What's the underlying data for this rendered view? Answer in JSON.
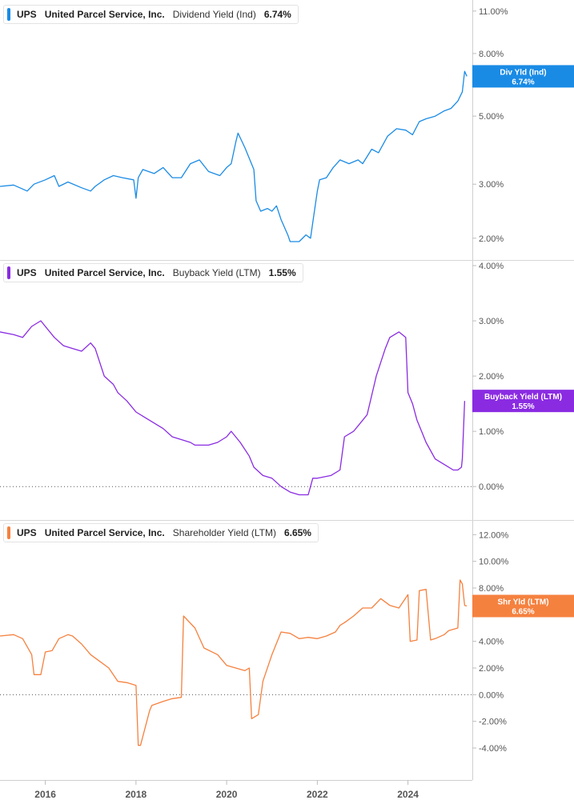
{
  "chart_data": [
    {
      "type": "line",
      "ticker": "UPS",
      "company": "United Parcel Service, Inc.",
      "metric": "Dividend Yield (Ind)",
      "current_value": "6.74%",
      "tag_label": "Div Yld (Ind)",
      "color": "#1a8be5",
      "y_scale": "log",
      "ylim": [
        1.75,
        11.6
      ],
      "y_ticks": [
        {
          "v": 11,
          "label": "11.00%"
        },
        {
          "v": 8,
          "label": "8.00%"
        },
        {
          "v": 5,
          "label": "5.00%"
        },
        {
          "v": 3,
          "label": "3.00%"
        },
        {
          "v": 2,
          "label": "2.00%"
        }
      ],
      "zero_line": false,
      "series": [
        {
          "x": [
            2015.0,
            2015.3,
            2015.6,
            2015.75,
            2016.0,
            2016.2,
            2016.3,
            2016.5,
            2016.8,
            2017.0,
            2017.1,
            2017.3,
            2017.5,
            2017.7,
            2017.95,
            2018.0,
            2018.05,
            2018.15,
            2018.4,
            2018.6,
            2018.8,
            2019.0,
            2019.2,
            2019.4,
            2019.6,
            2019.85,
            2020.0,
            2020.1,
            2020.2,
            2020.25,
            2020.4,
            2020.6,
            2020.65,
            2020.75,
            2020.9,
            2021.0,
            2021.1,
            2021.2,
            2021.35,
            2021.4,
            2021.6,
            2021.75,
            2021.85,
            2021.9,
            2022.0,
            2022.05,
            2022.2,
            2022.35,
            2022.5,
            2022.7,
            2022.9,
            2023.0,
            2023.2,
            2023.35,
            2023.55,
            2023.75,
            2023.95,
            2024.1,
            2024.25,
            2024.4,
            2024.6,
            2024.7,
            2024.8,
            2024.95,
            2025.1,
            2025.2,
            2025.25,
            2025.3
          ],
          "values": [
            2.95,
            2.98,
            2.85,
            3.0,
            3.1,
            3.2,
            2.95,
            3.05,
            2.92,
            2.85,
            2.95,
            3.1,
            3.2,
            3.15,
            3.1,
            2.7,
            3.15,
            3.35,
            3.25,
            3.4,
            3.15,
            3.15,
            3.5,
            3.6,
            3.3,
            3.2,
            3.4,
            3.5,
            4.1,
            4.4,
            3.95,
            3.35,
            2.65,
            2.45,
            2.5,
            2.45,
            2.55,
            2.3,
            2.05,
            1.95,
            1.95,
            2.05,
            2.0,
            2.25,
            2.85,
            3.1,
            3.15,
            3.4,
            3.6,
            3.5,
            3.6,
            3.5,
            3.9,
            3.8,
            4.3,
            4.55,
            4.5,
            4.35,
            4.8,
            4.9,
            5.0,
            5.1,
            5.2,
            5.3,
            5.6,
            6.0,
            7.0,
            6.74
          ]
        }
      ]
    },
    {
      "type": "line",
      "ticker": "UPS",
      "company": "United Parcel Service, Inc.",
      "metric": "Buyback Yield (LTM)",
      "current_value": "1.55%",
      "tag_label": "Buyback Yield (LTM)",
      "color": "#8a2be2",
      "y_scale": "linear",
      "ylim": [
        -0.2,
        4.0
      ],
      "y_ticks": [
        {
          "v": 4,
          "label": "4.00%"
        },
        {
          "v": 3,
          "label": "3.00%"
        },
        {
          "v": 2,
          "label": "2.00%"
        },
        {
          "v": 1,
          "label": "1.00%"
        },
        {
          "v": 0,
          "label": "0.00%"
        }
      ],
      "zero_line": true,
      "series": [
        {
          "x": [
            2015.0,
            2015.3,
            2015.5,
            2015.7,
            2015.9,
            2016.0,
            2016.2,
            2016.4,
            2016.6,
            2016.8,
            2017.0,
            2017.1,
            2017.3,
            2017.5,
            2017.6,
            2017.8,
            2018.0,
            2018.2,
            2018.4,
            2018.6,
            2018.8,
            2019.0,
            2019.2,
            2019.3,
            2019.6,
            2019.8,
            2020.0,
            2020.1,
            2020.3,
            2020.5,
            2020.6,
            2020.8,
            2021.0,
            2021.2,
            2021.4,
            2021.6,
            2021.8,
            2021.9,
            2022.0,
            2022.3,
            2022.5,
            2022.6,
            2022.8,
            2023.0,
            2023.1,
            2023.3,
            2023.5,
            2023.6,
            2023.8,
            2023.95,
            2024.0,
            2024.1,
            2024.2,
            2024.3,
            2024.4,
            2024.6,
            2024.8,
            2025.0,
            2025.1,
            2025.18,
            2025.2,
            2025.25
          ],
          "values": [
            2.8,
            2.75,
            2.7,
            2.9,
            3.0,
            2.9,
            2.7,
            2.55,
            2.5,
            2.45,
            2.6,
            2.5,
            2.0,
            1.85,
            1.7,
            1.55,
            1.35,
            1.25,
            1.15,
            1.05,
            0.9,
            0.85,
            0.8,
            0.75,
            0.75,
            0.8,
            0.9,
            1.0,
            0.8,
            0.55,
            0.35,
            0.2,
            0.15,
            0.0,
            -0.1,
            -0.15,
            -0.15,
            0.15,
            0.15,
            0.2,
            0.3,
            0.9,
            1.0,
            1.2,
            1.3,
            2.0,
            2.5,
            2.7,
            2.8,
            2.7,
            1.7,
            1.5,
            1.2,
            1.0,
            0.8,
            0.5,
            0.4,
            0.3,
            0.3,
            0.35,
            0.5,
            1.55
          ]
        }
      ]
    },
    {
      "type": "line",
      "ticker": "UPS",
      "company": "United Parcel Service, Inc.",
      "metric": "Shareholder Yield (LTM)",
      "current_value": "6.65%",
      "tag_label": "Shr Yld (LTM)",
      "color": "#f5813f",
      "y_scale": "linear",
      "ylim": [
        -5.2,
        12.5
      ],
      "y_ticks": [
        {
          "v": 12,
          "label": "12.00%"
        },
        {
          "v": 10,
          "label": "10.00%"
        },
        {
          "v": 8,
          "label": "8.00%"
        },
        {
          "v": 4,
          "label": "4.00%"
        },
        {
          "v": 2,
          "label": "2.00%"
        },
        {
          "v": 0,
          "label": "0.00%"
        },
        {
          "v": -2,
          "label": "-2.00%"
        },
        {
          "v": -4,
          "label": "-4.00%"
        }
      ],
      "zero_line": true,
      "series": [
        {
          "x": [
            2015.0,
            2015.3,
            2015.5,
            2015.7,
            2015.75,
            2015.9,
            2016.0,
            2016.15,
            2016.3,
            2016.5,
            2016.6,
            2016.8,
            2017.0,
            2017.2,
            2017.4,
            2017.6,
            2017.8,
            2017.9,
            2018.0,
            2018.05,
            2018.1,
            2018.3,
            2018.35,
            2018.6,
            2018.8,
            2019.0,
            2019.05,
            2019.3,
            2019.5,
            2019.8,
            2020.0,
            2020.2,
            2020.4,
            2020.5,
            2020.55,
            2020.7,
            2020.8,
            2020.85,
            2021.0,
            2021.2,
            2021.4,
            2021.6,
            2021.8,
            2022.0,
            2022.2,
            2022.4,
            2022.5,
            2022.6,
            2022.8,
            2023.0,
            2023.2,
            2023.4,
            2023.6,
            2023.8,
            2024.0,
            2024.05,
            2024.2,
            2024.25,
            2024.4,
            2024.5,
            2024.6,
            2024.8,
            2024.9,
            2025.1,
            2025.15,
            2025.2,
            2025.25,
            2025.3
          ],
          "values": [
            4.4,
            4.5,
            4.2,
            3.0,
            1.5,
            1.5,
            3.2,
            3.3,
            4.2,
            4.5,
            4.4,
            3.8,
            3.0,
            2.5,
            2.0,
            1.0,
            0.9,
            0.8,
            0.7,
            -3.8,
            -3.8,
            -1.2,
            -0.8,
            -0.5,
            -0.3,
            -0.2,
            5.9,
            5.0,
            3.5,
            3.0,
            2.2,
            2.0,
            1.8,
            2.0,
            -1.8,
            -1.5,
            1.0,
            1.5,
            3.0,
            4.7,
            4.6,
            4.2,
            4.3,
            4.2,
            4.4,
            4.7,
            5.2,
            5.4,
            5.9,
            6.5,
            6.5,
            7.2,
            6.7,
            6.5,
            7.5,
            4.0,
            4.1,
            7.8,
            7.9,
            4.1,
            4.2,
            4.5,
            4.8,
            5.0,
            8.6,
            8.3,
            6.7,
            6.65
          ]
        }
      ]
    }
  ],
  "x_axis": {
    "range": [
      2015.0,
      2025.42
    ],
    "ticks": [
      {
        "v": 2016,
        "label": "2016"
      },
      {
        "v": 2018,
        "label": "2018"
      },
      {
        "v": 2020,
        "label": "2020"
      },
      {
        "v": 2022,
        "label": "2022"
      },
      {
        "v": 2024,
        "label": "2024"
      }
    ]
  }
}
